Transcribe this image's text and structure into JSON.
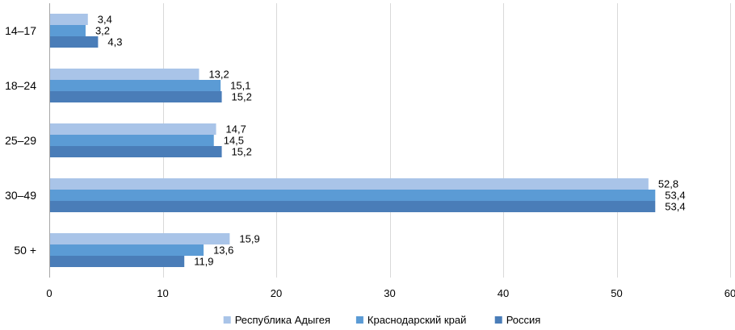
{
  "chart_data": {
    "type": "bar",
    "orientation": "horizontal",
    "categories": [
      "14–17",
      "18–24",
      "25–29",
      "30–49",
      "50 +"
    ],
    "series": [
      {
        "name": "Республика Адыгея",
        "values": [
          3.4,
          13.2,
          14.7,
          52.8,
          15.9
        ],
        "labels": [
          "3,4",
          "13,2",
          "14,7",
          "52,8",
          "15,9"
        ],
        "color": "#a9c4e8"
      },
      {
        "name": "Краснодарский край",
        "values": [
          3.2,
          15.1,
          14.5,
          53.4,
          13.6
        ],
        "labels": [
          "3,2",
          "15,1",
          "14,5",
          "53,4",
          "13,6"
        ],
        "color": "#5b9bd5"
      },
      {
        "name": "Россия",
        "values": [
          4.3,
          15.2,
          15.2,
          53.4,
          11.9
        ],
        "labels": [
          "4,3",
          "15,2",
          "15,2",
          "53,4",
          "11,9"
        ],
        "color": "#4a7db8"
      }
    ],
    "xlim": [
      0,
      60
    ],
    "xticks": [
      0,
      10,
      20,
      30,
      40,
      50,
      60
    ],
    "grid": true,
    "legend_position": "bottom",
    "title": "",
    "xlabel": "",
    "ylabel": ""
  }
}
